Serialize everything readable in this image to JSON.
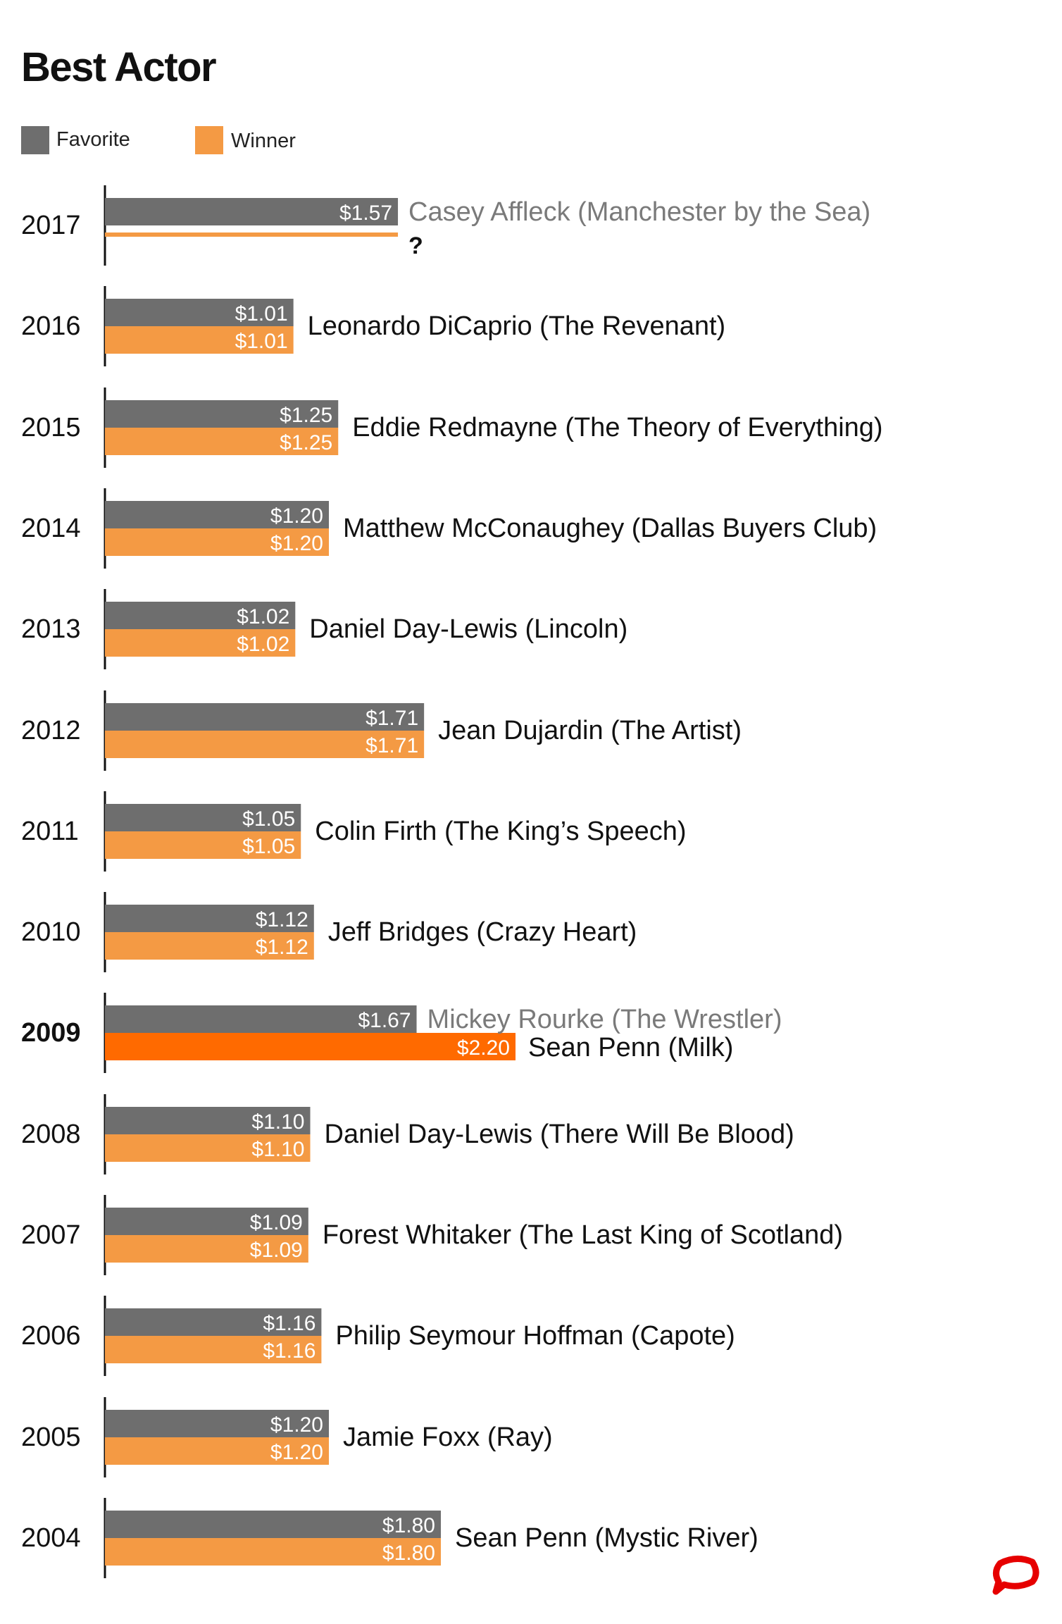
{
  "chart_data": {
    "type": "bar",
    "title": "Best Actor",
    "legend": {
      "placement": "top-left",
      "entries": [
        {
          "name": "Favorite",
          "color": "#6e6e6e"
        },
        {
          "name": "Winner",
          "color": "#f49a44"
        }
      ]
    },
    "highlight_winner_color": "#ff6a00",
    "label_gray_color": "#7a7a7a",
    "x_range": [
      0,
      2.2
    ],
    "series": [
      {
        "name": "Favorite",
        "values": [
          1.57,
          1.01,
          1.25,
          1.2,
          1.02,
          1.71,
          1.05,
          1.12,
          1.67,
          1.1,
          1.09,
          1.16,
          1.2,
          1.8
        ]
      },
      {
        "name": "Winner",
        "values": [
          null,
          1.01,
          1.25,
          1.2,
          1.02,
          1.71,
          1.05,
          1.12,
          2.2,
          1.1,
          1.09,
          1.16,
          1.2,
          1.8
        ]
      }
    ],
    "rows": [
      {
        "year": "2017",
        "favorite": 1.57,
        "favorite_label": "$1.57",
        "winner": null,
        "winner_label": "",
        "favorite_name": "Casey Affleck (Manchester by the Sea)",
        "name": "?",
        "upset": false,
        "pending": true,
        "bold_year": false
      },
      {
        "year": "2016",
        "favorite": 1.01,
        "favorite_label": "$1.01",
        "winner": 1.01,
        "winner_label": "$1.01",
        "name": "Leonardo DiCaprio (The Revenant)",
        "upset": false,
        "bold_year": false
      },
      {
        "year": "2015",
        "favorite": 1.25,
        "favorite_label": "$1.25",
        "winner": 1.25,
        "winner_label": "$1.25",
        "name": "Eddie Redmayne (The Theory of Everything)",
        "upset": false,
        "bold_year": false
      },
      {
        "year": "2014",
        "favorite": 1.2,
        "favorite_label": "$1.20",
        "winner": 1.2,
        "winner_label": "$1.20",
        "name": "Matthew McConaughey (Dallas Buyers Club)",
        "upset": false,
        "bold_year": false
      },
      {
        "year": "2013",
        "favorite": 1.02,
        "favorite_label": "$1.02",
        "winner": 1.02,
        "winner_label": "$1.02",
        "name": "Daniel Day-Lewis (Lincoln)",
        "upset": false,
        "bold_year": false
      },
      {
        "year": "2012",
        "favorite": 1.71,
        "favorite_label": "$1.71",
        "winner": 1.71,
        "winner_label": "$1.71",
        "name": "Jean Dujardin (The Artist)",
        "upset": false,
        "bold_year": false
      },
      {
        "year": "2011",
        "favorite": 1.05,
        "favorite_label": "$1.05",
        "winner": 1.05,
        "winner_label": "$1.05",
        "name": "Colin Firth (The King’s Speech)",
        "upset": false,
        "bold_year": false
      },
      {
        "year": "2010",
        "favorite": 1.12,
        "favorite_label": "$1.12",
        "winner": 1.12,
        "winner_label": "$1.12",
        "name": "Jeff Bridges (Crazy Heart)",
        "upset": false,
        "bold_year": false
      },
      {
        "year": "2009",
        "favorite": 1.67,
        "favorite_label": "$1.67",
        "winner": 2.2,
        "winner_label": "$2.20",
        "favorite_name": "Mickey Rourke (The Wrestler)",
        "name": "Sean Penn (Milk)",
        "upset": true,
        "bold_year": true
      },
      {
        "year": "2008",
        "favorite": 1.1,
        "favorite_label": "$1.10",
        "winner": 1.1,
        "winner_label": "$1.10",
        "name": "Daniel Day-Lewis (There Will Be Blood)",
        "upset": false,
        "bold_year": false
      },
      {
        "year": "2007",
        "favorite": 1.09,
        "favorite_label": "$1.09",
        "winner": 1.09,
        "winner_label": "$1.09",
        "name": "Forest Whitaker (The Last King of Scotland)",
        "upset": false,
        "bold_year": false
      },
      {
        "year": "2006",
        "favorite": 1.16,
        "favorite_label": "$1.16",
        "winner": 1.16,
        "winner_label": "$1.16",
        "name": "Philip Seymour Hoffman (Capote)",
        "upset": false,
        "bold_year": false
      },
      {
        "year": "2005",
        "favorite": 1.2,
        "favorite_label": "$1.20",
        "winner": 1.2,
        "winner_label": "$1.20",
        "name": "Jamie Foxx (Ray)",
        "upset": false,
        "bold_year": false
      },
      {
        "year": "2004",
        "favorite": 1.8,
        "favorite_label": "$1.80",
        "winner": 1.8,
        "winner_label": "$1.80",
        "name": "Sean Penn (Mystic River)",
        "upset": false,
        "bold_year": false
      }
    ]
  },
  "brand": {
    "logo_icon": "speech-bubble-logo-icon",
    "color": "#e60000"
  }
}
